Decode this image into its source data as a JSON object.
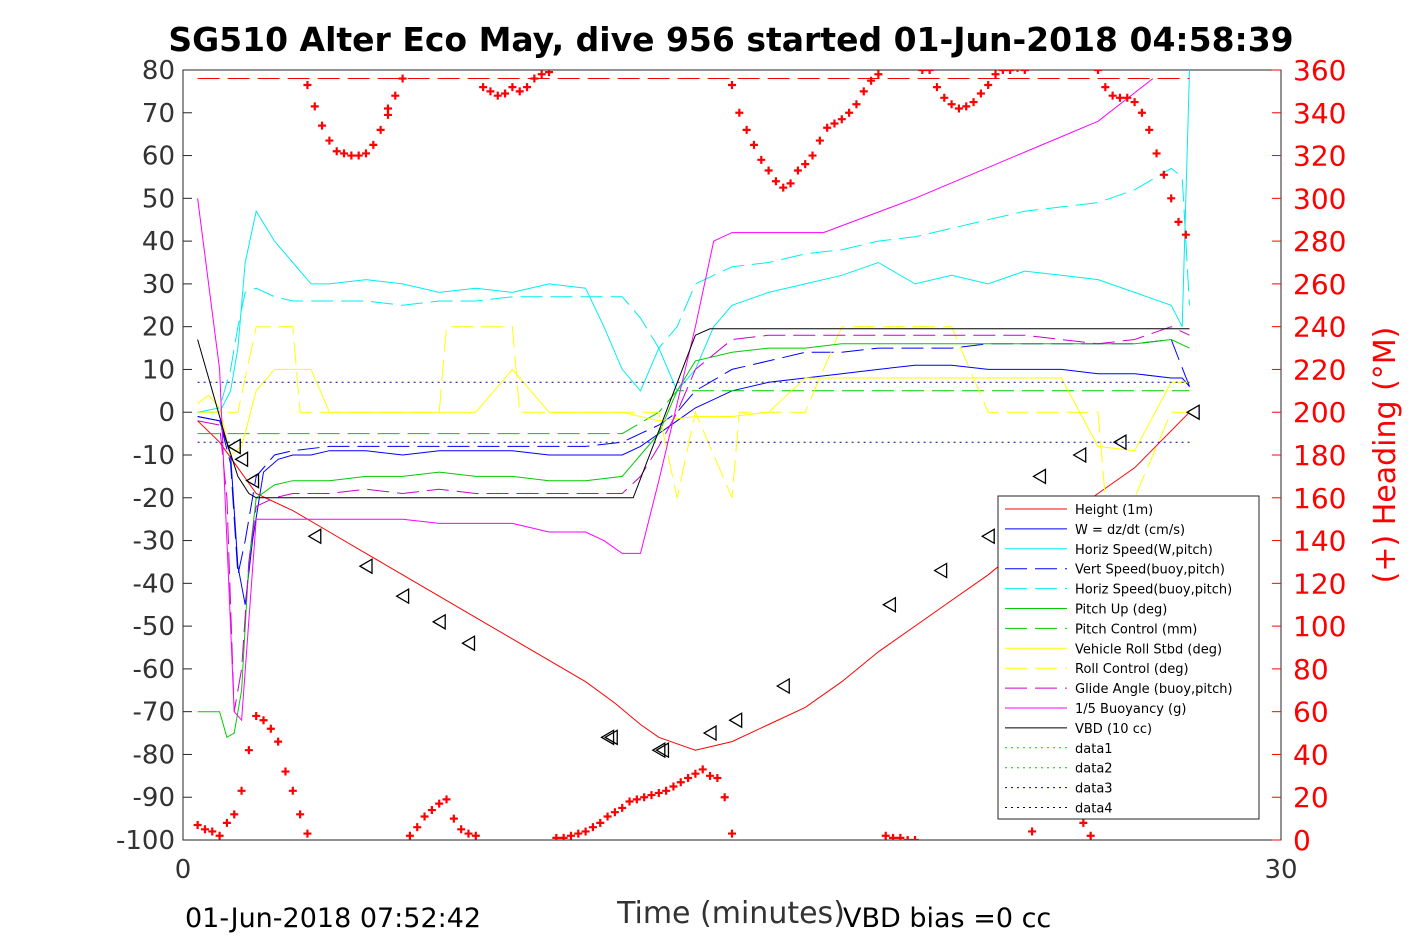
{
  "chart_data": {
    "type": "line",
    "title": "SG510 Alter Eco May, dive 956 started 01-Jun-2018 04:58:39",
    "xlabel": "Time (minutes)",
    "ylabel_right": "(+) Heading (°M)",
    "xlim": [
      0,
      30
    ],
    "ylim": [
      -100,
      80
    ],
    "ylim_right": [
      0,
      360
    ],
    "x_ticks": [
      "0",
      "30"
    ],
    "y_ticks": [
      "80",
      "70",
      "60",
      "50",
      "40",
      "30",
      "20",
      "10",
      "0",
      "-10",
      "-20",
      "-30",
      "-40",
      "-50",
      "-60",
      "-70",
      "-80",
      "-90",
      "-100"
    ],
    "y_ticks_right": [
      "360",
      "340",
      "320",
      "300",
      "280",
      "260",
      "240",
      "220",
      "200",
      "180",
      "160",
      "140",
      "120",
      "100",
      "80",
      "60",
      "40",
      "20",
      "0"
    ],
    "grid": false,
    "legend_position": "lower-right",
    "footer_left": "01-Jun-2018 07:52:42",
    "footer_right": "VBD bias =0 cc",
    "series": [
      {
        "name": "Height (1m)",
        "color": "#ff0000",
        "style": "solid",
        "x": [
          0.4,
          1.0,
          1.5,
          2.0,
          3.0,
          4.0,
          5.0,
          6.0,
          7.0,
          8.0,
          9.0,
          10.0,
          11.0,
          11.8,
          12.5,
          13.0,
          13.5,
          14.0,
          15.0,
          16.0,
          17.0,
          18.0,
          19.0,
          20.0,
          21.0,
          22.0,
          23.0,
          24.0,
          25.0,
          26.0,
          27.5
        ],
        "y": [
          -2,
          -7,
          -13,
          -19,
          -23,
          -28,
          -33,
          -38,
          -43,
          -48,
          -53,
          -58,
          -63,
          -68,
          -73,
          -76,
          -77.5,
          -79,
          -77,
          -73,
          -69,
          -63,
          -56,
          -50,
          -44,
          -38,
          -31,
          -25,
          -19,
          -13,
          0
        ]
      },
      {
        "name": "W = dz/dt (cm/s)",
        "color": "#0000ff",
        "style": "solid",
        "x": [
          0.4,
          1.0,
          1.3,
          1.5,
          1.7,
          1.9,
          2.2,
          2.6,
          3.0,
          3.5,
          4.0,
          5.0,
          6.0,
          7.0,
          8.0,
          9.0,
          10.0,
          11.0,
          12.0,
          12.5,
          13.0,
          13.5,
          14.0,
          14.5,
          15.0,
          16.0,
          17.0,
          18.0,
          19.0,
          20.0,
          21.0,
          22.0,
          23.0,
          24.0,
          25.0,
          26.0,
          27.0,
          27.3,
          27.5
        ],
        "y": [
          -1,
          -2,
          -10,
          -36,
          -45,
          -30,
          -14,
          -11,
          -10,
          -10,
          -9,
          -9,
          -10,
          -9,
          -9,
          -9,
          -10,
          -10,
          -10,
          -8,
          -5,
          -2,
          1,
          3,
          5,
          7,
          8,
          9,
          10,
          11,
          11,
          10,
          10,
          10,
          9,
          9,
          8,
          8,
          6
        ]
      },
      {
        "name": "Horiz Speed(W,pitch)",
        "color": "#00eeee",
        "style": "solid",
        "x": [
          0.4,
          1.0,
          1.3,
          1.5,
          1.7,
          2.0,
          2.5,
          3.0,
          3.5,
          4.0,
          5.0,
          6.0,
          7.0,
          8.0,
          9.0,
          10.0,
          11.0,
          11.5,
          12.0,
          12.5,
          13.0,
          13.5,
          14.0,
          14.5,
          15.0,
          16.0,
          17.0,
          18.0,
          19.0,
          20.0,
          21.0,
          22.0,
          23.0,
          24.0,
          25.0,
          26.0,
          27.0,
          27.3,
          27.5
        ],
        "y": [
          0,
          0,
          5,
          15,
          35,
          47,
          40,
          35,
          30,
          30,
          31,
          30,
          28,
          29,
          28,
          30,
          29,
          20,
          10,
          5,
          15,
          5,
          10,
          20,
          25,
          28,
          30,
          32,
          35,
          30,
          32,
          30,
          33,
          32,
          31,
          28,
          25,
          20,
          80
        ]
      },
      {
        "name": "Vert Speed(buoy,pitch)",
        "color": "#0000ff",
        "style": "dashed",
        "x": [
          0.4,
          1.0,
          1.3,
          1.5,
          1.7,
          2.0,
          2.5,
          3.0,
          4.0,
          5.0,
          6.0,
          7.0,
          8.0,
          9.0,
          10.0,
          11.0,
          12.0,
          12.5,
          13.0,
          13.5,
          14.0,
          15.0,
          16.0,
          17.0,
          18.0,
          19.0,
          20.0,
          21.0,
          22.0,
          23.0,
          24.0,
          25.0,
          26.0,
          27.0,
          27.5
        ],
        "y": [
          -1,
          -2,
          -12,
          -38,
          -30,
          -15,
          -10,
          -9,
          -8,
          -8,
          -8,
          -8,
          -8,
          -8,
          -8,
          -8,
          -7,
          -5,
          -3,
          0,
          5,
          10,
          12,
          14,
          14,
          15,
          15,
          15,
          16,
          16,
          16,
          16,
          16,
          17,
          6
        ]
      },
      {
        "name": "Horiz Speed(buoy,pitch)",
        "color": "#00eeee",
        "style": "dashed",
        "x": [
          0.4,
          1.0,
          1.3,
          1.5,
          1.7,
          2.0,
          2.5,
          3.0,
          4.0,
          5.0,
          6.0,
          7.0,
          8.0,
          9.0,
          10.0,
          11.0,
          12.0,
          12.5,
          13.0,
          13.5,
          14.0,
          15.0,
          16.0,
          17.0,
          18.0,
          19.0,
          20.0,
          21.0,
          22.0,
          23.0,
          24.0,
          25.0,
          26.0,
          27.0,
          27.3,
          27.5
        ],
        "y": [
          0,
          1,
          10,
          20,
          28,
          29,
          27,
          26,
          26,
          26,
          25,
          26,
          26,
          27,
          27,
          27,
          27,
          22,
          15,
          20,
          30,
          34,
          35,
          37,
          38,
          40,
          41,
          43,
          45,
          47,
          48,
          49,
          52,
          57,
          55,
          25
        ]
      },
      {
        "name": "Pitch Up (deg)",
        "color": "#00cc00",
        "style": "solid",
        "x": [
          0.4,
          1.0,
          1.2,
          1.4,
          1.6,
          1.8,
          2.0,
          2.5,
          3.0,
          4.0,
          5.0,
          6.0,
          7.0,
          8.0,
          9.0,
          10.0,
          11.0,
          12.0,
          12.5,
          13.0,
          13.5,
          14.0,
          15.0,
          16.0,
          17.0,
          18.0,
          19.0,
          20.0,
          21.0,
          22.0,
          23.0,
          24.0,
          25.0,
          26.0,
          27.0,
          27.5
        ],
        "y": [
          -70,
          -70,
          -76,
          -75,
          -65,
          -35,
          -20,
          -17,
          -16,
          -16,
          -15,
          -15,
          -14,
          -15,
          -15,
          -16,
          -16,
          -15,
          -10,
          -5,
          5,
          12,
          14,
          15,
          15,
          16,
          16,
          16,
          16,
          16,
          16,
          16,
          16,
          16,
          17,
          15
        ]
      },
      {
        "name": "Pitch Control (mm)",
        "color": "#00cc00",
        "style": "dashed",
        "x": [
          0.4,
          1.5,
          2.0,
          4.0,
          8.0,
          12.0,
          13.0,
          13.5,
          14.0,
          18.0,
          22.0,
          27.5
        ],
        "y": [
          -5,
          -5,
          -5,
          -5,
          -5,
          -5,
          0,
          5,
          5,
          5,
          5,
          5
        ]
      },
      {
        "name": "Vehicle Roll Stbd (deg)",
        "color": "#ffff00",
        "style": "solid",
        "x": [
          0.4,
          0.7,
          1.0,
          1.3,
          1.6,
          2.0,
          2.5,
          3.0,
          3.5,
          4.0,
          5.0,
          6.0,
          7.0,
          8.0,
          9.0,
          10.0,
          11.0,
          12.0,
          13.0,
          14.0,
          15.0,
          16.0,
          17.0,
          18.0,
          19.0,
          20.0,
          21.0,
          22.0,
          23.0,
          24.0,
          25.0,
          26.0,
          27.0,
          27.5
        ],
        "y": [
          2,
          4,
          1,
          -10,
          -8,
          5,
          10,
          10,
          10,
          0,
          0,
          0,
          0,
          0,
          10,
          0,
          0,
          0,
          -2,
          -1,
          -1,
          0,
          8,
          8,
          8,
          8,
          8,
          8,
          8,
          8,
          -8,
          -9,
          7,
          7
        ]
      },
      {
        "name": "Roll Control (deg)",
        "color": "#ffff00",
        "style": "dashed",
        "x": [
          0.4,
          1.0,
          1.5,
          2.0,
          3.0,
          3.2,
          4.0,
          5.0,
          6.0,
          7.0,
          7.2,
          8.0,
          9.0,
          9.2,
          10.0,
          11.0,
          12.0,
          13.0,
          13.5,
          14.0,
          15.0,
          15.2,
          16.0,
          17.0,
          18.0,
          19.0,
          20.0,
          21.0,
          22.0,
          23.0,
          24.0,
          25.0,
          25.2,
          26.0,
          27.0,
          27.5
        ],
        "y": [
          0,
          0,
          0,
          20,
          20,
          0,
          0,
          0,
          0,
          0,
          20,
          20,
          20,
          0,
          0,
          0,
          0,
          0,
          -20,
          0,
          -20,
          0,
          0,
          0,
          20,
          20,
          20,
          20,
          0,
          0,
          0,
          0,
          -20,
          -20,
          0,
          0
        ]
      },
      {
        "name": "Glide Angle (buoy,pitch)",
        "color": "#cc00cc",
        "style": "dashed",
        "x": [
          0.4,
          1.0,
          1.2,
          1.4,
          1.6,
          1.8,
          2.0,
          2.5,
          3.0,
          4.0,
          5.0,
          6.0,
          7.0,
          8.0,
          9.0,
          10.0,
          11.0,
          12.0,
          12.5,
          13.0,
          13.5,
          14.0,
          15.0,
          16.0,
          17.0,
          18.0,
          19.0,
          20.0,
          21.0,
          22.0,
          23.0,
          24.0,
          25.0,
          26.0,
          27.0,
          27.5
        ],
        "y": [
          -2,
          -3,
          -20,
          -70,
          -60,
          -35,
          -22,
          -20,
          -19,
          -19,
          -18,
          -19,
          -18,
          -19,
          -19,
          -19,
          -19,
          -19,
          -15,
          -8,
          0,
          10,
          17,
          18,
          18,
          18,
          18,
          18,
          18,
          18,
          18,
          17,
          16,
          17,
          20,
          18
        ]
      },
      {
        "name": "1/5 Buoyancy (g)",
        "color": "#ff00ff",
        "style": "solid",
        "x": [
          0.4,
          1.0,
          1.4,
          1.6,
          2.0,
          3.0,
          4.0,
          5.0,
          6.0,
          7.0,
          8.0,
          9.0,
          10.0,
          11.0,
          11.5,
          12.0,
          12.5,
          13.0,
          14.0,
          14.5,
          15.0,
          16.0,
          17.5,
          20.0,
          25.0,
          26.5
        ],
        "y": [
          50,
          10,
          -70,
          -72,
          -25,
          -25,
          -25,
          -25,
          -25,
          -26,
          -26,
          -26,
          -28,
          -28,
          -30,
          -33,
          -33,
          -16,
          20,
          40,
          42,
          42,
          42,
          50,
          68,
          78
        ]
      },
      {
        "name": "VBD (10 cc)",
        "color": "#000000",
        "style": "solid",
        "x": [
          0.4,
          0.8,
          1.2,
          1.5,
          1.8,
          2.0,
          3.0,
          5.0,
          8.0,
          10.0,
          11.0,
          12.0,
          12.3,
          14.0,
          14.4,
          15.0,
          16.0,
          20.0,
          24.0,
          27.5
        ],
        "y": [
          17,
          5,
          -7,
          -15,
          -19,
          -20,
          -20,
          -20,
          -20,
          -20,
          -20,
          -20,
          -20,
          18,
          19.5,
          19.5,
          19.5,
          19.5,
          19.5,
          19.5
        ]
      },
      {
        "name": "data1",
        "color": "#00cc00",
        "style": "dotted",
        "x": [],
        "y": []
      },
      {
        "name": "data2",
        "color": "#00cc00",
        "style": "dotted",
        "x": [],
        "y": []
      },
      {
        "name": "data3",
        "color": "#000099",
        "style": "dotted",
        "x": [
          0.4,
          27.5
        ],
        "y": [
          7,
          7
        ]
      },
      {
        "name": "data4",
        "color": "#000099",
        "style": "dotted",
        "x": [
          0.4,
          27.5
        ],
        "y": [
          -7,
          -7
        ]
      }
    ],
    "heading_reference_line": {
      "color": "#ff0000",
      "style": "dashed",
      "heading": 356
    },
    "heading_series": {
      "color": "#ff0000",
      "marker": "+",
      "x": [
        0.4,
        0.6,
        0.8,
        1.0,
        1.2,
        1.4,
        1.6,
        1.8,
        2.0,
        2.2,
        2.4,
        2.6,
        2.8,
        3.0,
        3.2,
        3.4,
        3.4,
        3.6,
        3.8,
        4.0,
        4.2,
        4.4,
        4.6,
        4.8,
        5.0,
        5.2,
        5.4,
        5.6,
        5.6,
        5.8,
        6.0,
        6.2,
        6.4,
        6.6,
        6.8,
        7.0,
        7.2,
        7.4,
        7.6,
        7.8,
        8.0,
        8.2,
        8.4,
        8.6,
        8.8,
        9.0,
        9.2,
        9.4,
        9.6,
        9.8,
        10.0,
        10.2,
        10.4,
        10.6,
        10.8,
        11.0,
        11.2,
        11.4,
        11.6,
        11.8,
        12.0,
        12.2,
        12.4,
        12.6,
        12.8,
        13.0,
        13.2,
        13.4,
        13.6,
        13.8,
        14.0,
        14.2,
        14.4,
        14.6,
        14.8,
        15.0,
        15.0,
        15.2,
        15.4,
        15.6,
        15.8,
        16.0,
        16.2,
        16.4,
        16.6,
        16.8,
        17.0,
        17.2,
        17.4,
        17.6,
        17.8,
        18.0,
        18.2,
        18.4,
        18.6,
        18.8,
        19.0,
        19.2,
        19.4,
        19.6,
        19.8,
        20.0,
        20.2,
        20.4,
        20.6,
        20.8,
        21.0,
        21.2,
        21.4,
        21.6,
        21.8,
        22.0,
        22.2,
        22.4,
        22.6,
        22.8,
        23.0,
        23.2,
        23.4,
        23.6,
        23.8,
        24.0,
        24.2,
        24.4,
        24.6,
        24.8,
        25.0,
        25.2,
        25.4,
        25.6,
        25.8,
        26.0,
        26.2,
        26.4,
        26.6,
        26.8,
        27.0,
        27.2,
        27.4
      ],
      "y": [
        7,
        5,
        4,
        2,
        8,
        12,
        23,
        42,
        58,
        56,
        52,
        46,
        32,
        23,
        12,
        3,
        353,
        343,
        334,
        327,
        322,
        321,
        320,
        320,
        321,
        325,
        332,
        339,
        342,
        348,
        356,
        2,
        6,
        11,
        14,
        17,
        19,
        10,
        5,
        3,
        2,
        352,
        350,
        348,
        349,
        352,
        350,
        352,
        356,
        358,
        359,
        1,
        1,
        2,
        3,
        4,
        6,
        8,
        11,
        13,
        15,
        18,
        19,
        20,
        21,
        22,
        23,
        25,
        27,
        29,
        31,
        33,
        30,
        29,
        20,
        3,
        353,
        340,
        332,
        325,
        318,
        313,
        308,
        305,
        307,
        313,
        316,
        320,
        327,
        333,
        335,
        337,
        340,
        344,
        350,
        355,
        358,
        2,
        1,
        1,
        0,
        0,
        360,
        360,
        352,
        347,
        344,
        342,
        343,
        345,
        349,
        353,
        358,
        360,
        360,
        361,
        360,
        4,
        12,
        20,
        22,
        25,
        33,
        21,
        8,
        2,
        360,
        352,
        348,
        347,
        347,
        345,
        340,
        332,
        321,
        311,
        300,
        289,
        283
      ]
    },
    "depth_markers": {
      "marker": "triangle-left",
      "x": [
        1.4,
        1.6,
        1.9,
        3.6,
        5.0,
        6.0,
        7.0,
        7.8,
        11.6,
        11.7,
        13.0,
        13.1,
        14.4,
        15.1,
        16.4,
        19.3,
        20.7,
        22.0,
        23.4,
        24.5,
        25.6,
        27.6
      ],
      "y": [
        -8,
        -11,
        -16,
        -29,
        -36,
        -43,
        -49,
        -54,
        -76,
        -76,
        -79,
        -79,
        -75,
        -72,
        -64,
        -45,
        -37,
        -29,
        -15,
        -10,
        -7,
        0
      ]
    }
  }
}
